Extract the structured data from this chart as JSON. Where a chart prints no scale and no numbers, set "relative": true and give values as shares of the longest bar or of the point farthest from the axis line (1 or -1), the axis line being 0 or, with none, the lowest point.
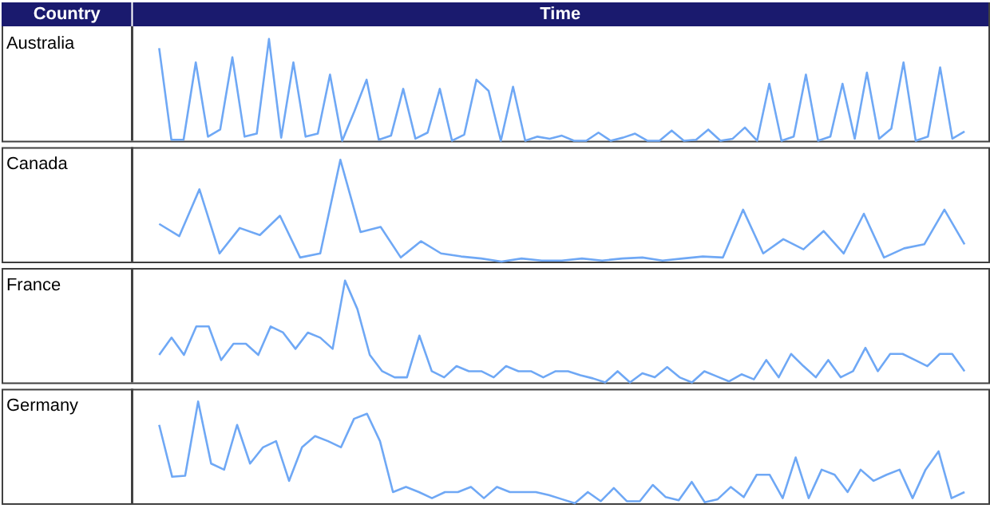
{
  "chart_data": [
    {
      "type": "line",
      "title": "Australia",
      "annotations": [
        "Country",
        "Time"
      ],
      "relative": true,
      "categories": [
        null,
        null,
        null,
        null,
        null,
        null,
        null,
        null,
        null,
        null,
        null,
        null,
        null,
        null,
        null,
        null,
        null,
        null,
        null,
        null,
        null,
        null,
        null,
        null,
        null,
        null,
        null,
        null,
        null,
        null,
        null,
        null,
        null,
        null,
        null,
        null,
        null,
        null,
        null,
        null,
        null,
        null,
        null,
        null,
        null,
        null,
        null,
        null,
        null,
        null,
        null,
        null,
        null,
        null,
        null,
        null,
        null,
        null,
        null,
        null,
        null,
        null,
        null,
        null,
        null,
        null,
        null
      ],
      "series": [
        {
          "color": "#6fa8f5",
          "values": [
            0.91,
            0.01,
            0.01,
            0.77,
            0.04,
            0.11,
            0.82,
            0.04,
            0.07,
            1.0,
            0.03,
            0.77,
            0.04,
            0.07,
            0.65,
            0,
            0.29,
            0.6,
            0.01,
            0.05,
            0.51,
            0.02,
            0.08,
            0.51,
            0,
            0.06,
            0.6,
            0.49,
            0,
            0.53,
            0,
            0.04,
            0.02,
            0.05,
            0,
            0,
            0.08,
            0,
            0.03,
            0.07,
            0,
            0,
            0.1,
            0,
            0.01,
            0.11,
            0,
            0.02,
            0.13,
            0,
            0.56,
            0,
            0.04,
            0.65,
            0,
            0.04,
            0.56,
            0.02,
            0.67,
            0.02,
            0.12,
            0.77,
            0,
            0.04,
            0.72,
            0.02,
            0.09
          ]
        }
      ]
    },
    {
      "type": "line",
      "title": "Canada",
      "relative": true,
      "categories": [
        null,
        null,
        null,
        null,
        null,
        null,
        null,
        null,
        null,
        null,
        null,
        null,
        null,
        null,
        null,
        null,
        null,
        null,
        null,
        null,
        null,
        null,
        null,
        null,
        null,
        null,
        null,
        null,
        null,
        null,
        null,
        null,
        null,
        null,
        null,
        null,
        null,
        null,
        null,
        null,
        null
      ],
      "series": [
        {
          "color": "#6fa8f5",
          "values": [
            0.37,
            0.25,
            0.71,
            0.08,
            0.33,
            0.26,
            0.45,
            0.04,
            0.08,
            1.0,
            0.29,
            0.34,
            0.04,
            0.2,
            0.08,
            0.05,
            0.03,
            0,
            0.03,
            0.01,
            0.01,
            0.03,
            0.01,
            0.03,
            0.04,
            0.01,
            0.03,
            0.05,
            0.04,
            0.51,
            0.08,
            0.22,
            0.12,
            0.3,
            0.08,
            0.47,
            0.04,
            0.13,
            0.17,
            0.51,
            0.17
          ]
        }
      ]
    },
    {
      "type": "line",
      "title": "France",
      "relative": true,
      "categories": [
        null,
        null,
        null,
        null,
        null,
        null,
        null,
        null,
        null,
        null,
        null,
        null,
        null,
        null,
        null,
        null,
        null,
        null,
        null,
        null,
        null,
        null,
        null,
        null,
        null,
        null,
        null,
        null,
        null,
        null,
        null,
        null,
        null,
        null,
        null,
        null,
        null,
        null,
        null,
        null,
        null,
        null,
        null,
        null,
        null,
        null,
        null,
        null,
        null,
        null,
        null,
        null,
        null,
        null,
        null,
        null,
        null,
        null,
        null,
        null,
        null,
        null,
        null,
        null,
        null,
        null
      ],
      "series": [
        {
          "color": "#6fa8f5",
          "values": [
            0.27,
            0.44,
            0.27,
            0.55,
            0.55,
            0.22,
            0.38,
            0.38,
            0.27,
            0.55,
            0.49,
            0.33,
            0.49,
            0.44,
            0.33,
            1.0,
            0.72,
            0.27,
            0.11,
            0.05,
            0.05,
            0.46,
            0.11,
            0.05,
            0.16,
            0.11,
            0.11,
            0.05,
            0.16,
            0.11,
            0.11,
            0.05,
            0.11,
            0.11,
            0.07,
            0.04,
            0,
            0.11,
            0,
            0.09,
            0.05,
            0.15,
            0.05,
            0,
            0.11,
            0.06,
            0.01,
            0.08,
            0.03,
            0.22,
            0.05,
            0.28,
            0.16,
            0.05,
            0.22,
            0.05,
            0.11,
            0.34,
            0.11,
            0.28,
            0.28,
            0.22,
            0.16,
            0.28,
            0.28,
            0.11
          ]
        }
      ]
    },
    {
      "type": "line",
      "title": "Germany",
      "relative": true,
      "categories": [
        null,
        null,
        null,
        null,
        null,
        null,
        null,
        null,
        null,
        null,
        null,
        null,
        null,
        null,
        null,
        null,
        null,
        null,
        null,
        null,
        null,
        null,
        null,
        null,
        null,
        null,
        null,
        null,
        null,
        null,
        null,
        null,
        null,
        null,
        null,
        null,
        null,
        null,
        null,
        null,
        null,
        null,
        null,
        null,
        null,
        null,
        null,
        null,
        null,
        null,
        null,
        null,
        null,
        null,
        null,
        null,
        null,
        null,
        null,
        null,
        null,
        null,
        null
      ],
      "series": [
        {
          "color": "#6fa8f5",
          "values": [
            0.77,
            0.26,
            0.27,
            1.0,
            0.39,
            0.33,
            0.77,
            0.39,
            0.55,
            0.61,
            0.22,
            0.55,
            0.66,
            0.61,
            0.55,
            0.83,
            0.88,
            0.61,
            0.11,
            0.16,
            0.11,
            0.05,
            0.11,
            0.11,
            0.16,
            0.05,
            0.16,
            0.11,
            0.11,
            0.11,
            0.08,
            0.04,
            0,
            0.11,
            0.02,
            0.15,
            0.02,
            0.02,
            0.18,
            0.06,
            0.03,
            0.21,
            0.01,
            0.04,
            0.16,
            0.06,
            0.28,
            0.28,
            0.05,
            0.45,
            0.05,
            0.33,
            0.28,
            0.11,
            0.33,
            0.22,
            0.28,
            0.33,
            0.05,
            0.33,
            0.51,
            0.05,
            0.11
          ]
        }
      ]
    }
  ]
}
